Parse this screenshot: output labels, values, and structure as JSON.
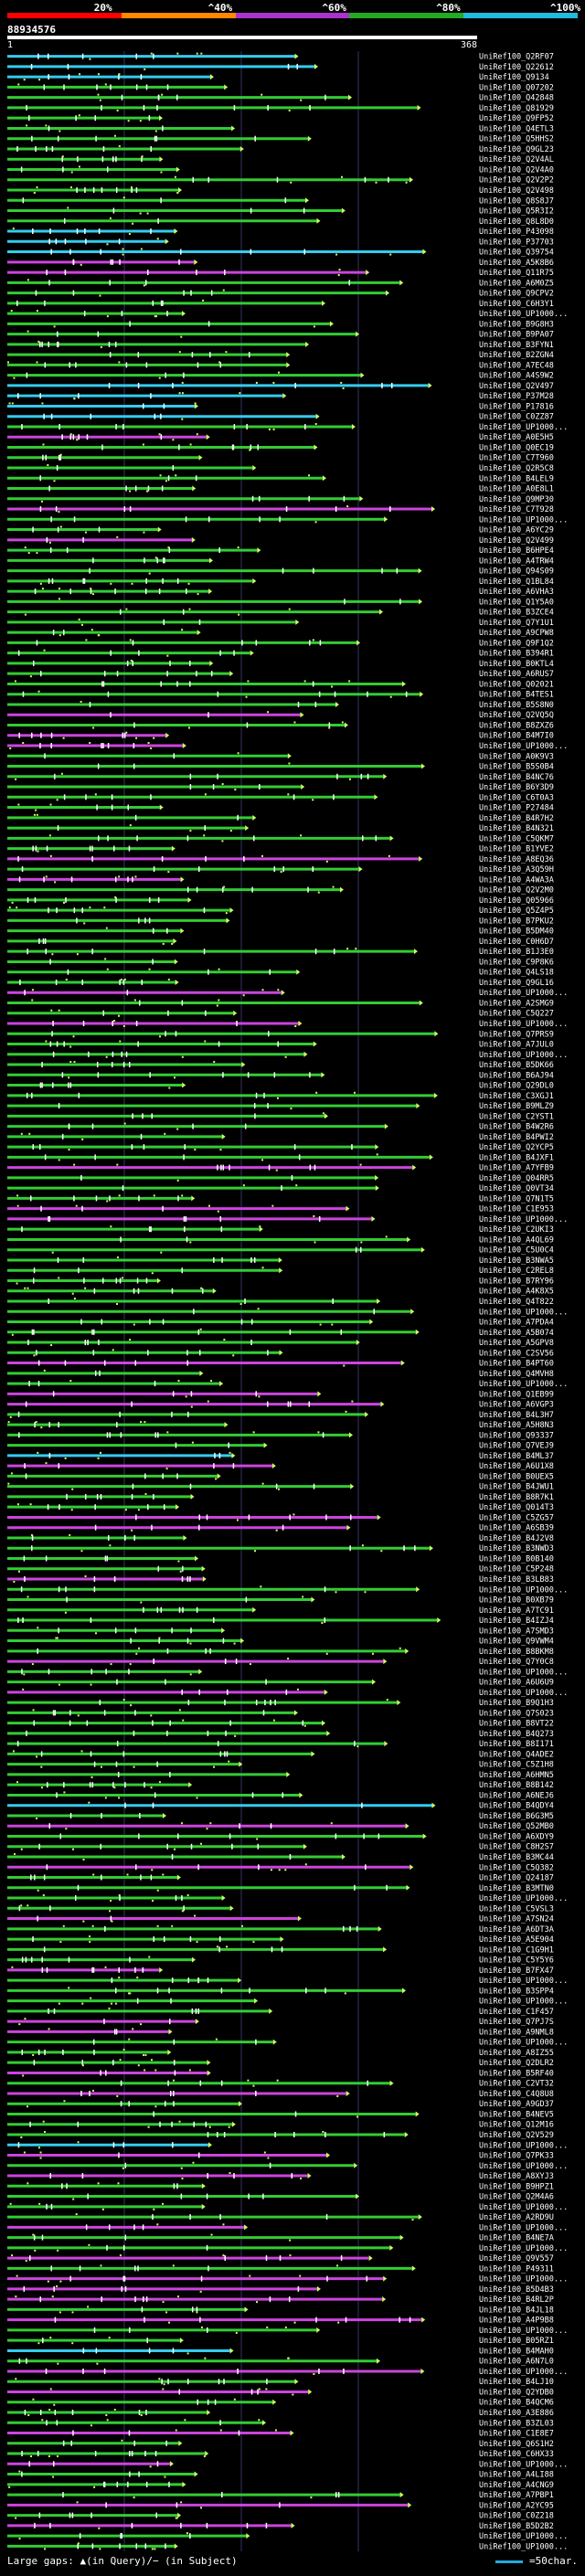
{
  "legend": {
    "segments": [
      {
        "label": "20%",
        "color": "#ff0000"
      },
      {
        "label": "^40%",
        "color": "#ff8800"
      },
      {
        "label": "^60%",
        "color": "#aa33cc"
      },
      {
        "label": "^80%",
        "color": "#22aa22"
      },
      {
        "label": "^100%",
        "color": "#22bbdd"
      }
    ]
  },
  "query_id": "88934576",
  "scale": {
    "start": "1",
    "end": "368"
  },
  "colors": {
    "gap": "#ffffff",
    "dots": "#ccff66",
    "grid": "#333366"
  },
  "chart_data": {
    "type": "alignment-overview",
    "x": {
      "range": [
        1,
        368
      ],
      "unit": "query position"
    },
    "hits": [
      {
        "name": "UniRef100_Q2RF07",
        "color": "cyan"
      },
      {
        "name": "UniRef100_Q22612",
        "color": "cyan"
      },
      {
        "name": "UniRef100_Q9134",
        "color": "cyan"
      },
      {
        "name": "UniRef100_Q07202",
        "color": "green"
      },
      {
        "name": "UniRef100_Q42848",
        "color": "green"
      },
      {
        "name": "UniRef100_Q81929",
        "color": "green"
      },
      {
        "name": "UniRef100_Q9FP52",
        "color": "green"
      },
      {
        "name": "UniRef100_Q4ETL3",
        "color": "green"
      },
      {
        "name": "UniRef100_Q5HHS2",
        "color": "green"
      },
      {
        "name": "UniRef100_Q9GL23",
        "color": "green"
      },
      {
        "name": "UniRef100_Q2V4AL",
        "color": "green"
      },
      {
        "name": "UniRef100_Q2V4A0",
        "color": "green"
      },
      {
        "name": "UniRef100_Q2V2P2",
        "color": "green"
      },
      {
        "name": "UniRef100_Q2V498",
        "color": "green"
      },
      {
        "name": "UniRef100_Q8S8J7",
        "color": "green"
      },
      {
        "name": "UniRef100_Q5R3I2",
        "color": "green"
      },
      {
        "name": "UniRef100_Q8L8D0",
        "color": "green"
      },
      {
        "name": "UniRef100_P43098",
        "color": "cyan"
      },
      {
        "name": "UniRef100_P37703",
        "color": "cyan"
      },
      {
        "name": "UniRef100_Q39754",
        "color": "cyan"
      },
      {
        "name": "UniRef100_A5K8B6",
        "color": "purple"
      },
      {
        "name": "UniRef100_Q11R75",
        "color": "purple"
      },
      {
        "name": "UniRef100_A6M0Z5",
        "color": "green"
      },
      {
        "name": "UniRef100_Q9CPV2",
        "color": "green"
      },
      {
        "name": "UniRef100_C6H3Y1",
        "color": "green"
      },
      {
        "name": "UniRef100_UP1000...",
        "color": "green"
      },
      {
        "name": "UniRef100_B9G8H3",
        "color": "green"
      },
      {
        "name": "UniRef100_B9PA07",
        "color": "green"
      },
      {
        "name": "UniRef100_B3FYN1",
        "color": "green"
      },
      {
        "name": "UniRef100_B2ZGN4",
        "color": "green"
      },
      {
        "name": "UniRef100_A7EC48",
        "color": "green"
      },
      {
        "name": "UniRef100_A4S9W2",
        "color": "green"
      },
      {
        "name": "UniRef100_Q2V497",
        "color": "cyan"
      },
      {
        "name": "UniRef100_P37M28",
        "color": "cyan"
      },
      {
        "name": "UniRef100_P17816",
        "color": "cyan"
      },
      {
        "name": "UniRef100_C0ZZ87",
        "color": "cyan"
      },
      {
        "name": "UniRef100_UP1000...",
        "color": "green"
      },
      {
        "name": "UniRef100_A0E5H5",
        "color": "purple"
      },
      {
        "name": "UniRef100_Q0EC19",
        "color": "green"
      },
      {
        "name": "UniRef100_C7T960",
        "color": "green"
      },
      {
        "name": "UniRef100_Q2R5C8",
        "color": "green"
      },
      {
        "name": "UniRef100_B4LEL9",
        "color": "green"
      },
      {
        "name": "UniRef100_A0E8L1",
        "color": "green"
      },
      {
        "name": "UniRef100_Q9MP30",
        "color": "green"
      },
      {
        "name": "UniRef100_C7T928",
        "color": "purple"
      },
      {
        "name": "UniRef100_UP1000...",
        "color": "green"
      },
      {
        "name": "UniRef100_A6YC29",
        "color": "green"
      },
      {
        "name": "UniRef100_Q2V499",
        "color": "purple"
      },
      {
        "name": "UniRef100_B6HPE4",
        "color": "green"
      },
      {
        "name": "UniRef100_A4TRW4",
        "color": "green"
      },
      {
        "name": "UniRef100_Q94S09",
        "color": "green"
      },
      {
        "name": "UniRef100_Q1BL84",
        "color": "green"
      },
      {
        "name": "UniRef100_A6VHA3",
        "color": "green"
      },
      {
        "name": "UniRef100_Q1Y5A0",
        "color": "green"
      },
      {
        "name": "UniRef100_B3ZCE4",
        "color": "green"
      },
      {
        "name": "UniRef100_Q7Y1U1",
        "color": "green"
      },
      {
        "name": "UniRef100_A9CPW8",
        "color": "green"
      },
      {
        "name": "UniRef100_Q9F1Q2",
        "color": "green"
      },
      {
        "name": "UniRef100_B394R1",
        "color": "green"
      },
      {
        "name": "UniRef100_B0KTL4",
        "color": "green"
      },
      {
        "name": "UniRef100_A6RUS7",
        "color": "green"
      },
      {
        "name": "UniRef100_Q02021",
        "color": "green"
      },
      {
        "name": "UniRef100_B4TES1",
        "color": "green"
      },
      {
        "name": "UniRef100_B5S8N0",
        "color": "green"
      },
      {
        "name": "UniRef100_Q2VQ5Q",
        "color": "purple"
      },
      {
        "name": "UniRef100_B8ZXZ6",
        "color": "green"
      },
      {
        "name": "UniRef100_B4M7I0",
        "color": "purple"
      },
      {
        "name": "UniRef100_UP1000...",
        "color": "purple"
      },
      {
        "name": "UniRef100_A0K9V3",
        "color": "green"
      },
      {
        "name": "UniRef100_B5S0B4",
        "color": "green"
      },
      {
        "name": "UniRef100_B4NC76",
        "color": "green"
      },
      {
        "name": "UniRef100_B6Y3D9",
        "color": "green"
      },
      {
        "name": "UniRef100_C6T0A3",
        "color": "green"
      },
      {
        "name": "UniRef100_P27484",
        "color": "green"
      },
      {
        "name": "UniRef100_B4R7H2",
        "color": "green"
      },
      {
        "name": "UniRef100_B4N321",
        "color": "green"
      },
      {
        "name": "UniRef100_C5QKM7",
        "color": "green"
      },
      {
        "name": "UniRef100_B1YVE2",
        "color": "green"
      },
      {
        "name": "UniRef100_A8EQ36",
        "color": "purple"
      },
      {
        "name": "UniRef100_A3Q59H",
        "color": "green"
      },
      {
        "name": "UniRef100_A4WA3A",
        "color": "purple"
      },
      {
        "name": "UniRef100_Q2V2M0",
        "color": "green"
      },
      {
        "name": "UniRef100_Q05966",
        "color": "green"
      },
      {
        "name": "UniRef100_Q5Z4P5",
        "color": "green"
      },
      {
        "name": "UniRef100_B7PKU2",
        "color": "green"
      },
      {
        "name": "UniRef100_B5DM40",
        "color": "green"
      },
      {
        "name": "UniRef100_C0H6D7",
        "color": "green"
      },
      {
        "name": "UniRef100_B1J3E0",
        "color": "green"
      },
      {
        "name": "UniRef100_C9P8K6",
        "color": "green"
      },
      {
        "name": "UniRef100_Q4LS18",
        "color": "green"
      },
      {
        "name": "UniRef100_Q9GL16",
        "color": "green"
      },
      {
        "name": "UniRef100_UP1000...",
        "color": "purple"
      },
      {
        "name": "UniRef100_A2SMG9",
        "color": "green"
      },
      {
        "name": "UniRef100_C5Q227",
        "color": "green"
      },
      {
        "name": "UniRef100_UP1000...",
        "color": "purple"
      },
      {
        "name": "UniRef100_Q7PRS9",
        "color": "green"
      },
      {
        "name": "UniRef100_A7JUL0",
        "color": "green"
      },
      {
        "name": "UniRef100_UP1000...",
        "color": "green"
      },
      {
        "name": "UniRef100_B5DK66",
        "color": "green"
      },
      {
        "name": "UniRef100_B6AJ94",
        "color": "green"
      },
      {
        "name": "UniRef100_Q29DL0",
        "color": "green"
      },
      {
        "name": "UniRef100_C3XGJ1",
        "color": "green"
      },
      {
        "name": "UniRef100_B9MLZ9",
        "color": "green"
      },
      {
        "name": "UniRef100_C2YST1",
        "color": "green"
      },
      {
        "name": "UniRef100_B4W2R6",
        "color": "green"
      },
      {
        "name": "UniRef100_B4PWI2",
        "color": "green"
      },
      {
        "name": "UniRef100_Q2YCP5",
        "color": "green"
      },
      {
        "name": "UniRef100_B4JXF1",
        "color": "green"
      },
      {
        "name": "UniRef100_A7YFB9",
        "color": "purple"
      },
      {
        "name": "UniRef100_Q04RR5",
        "color": "green"
      },
      {
        "name": "UniRef100_Q0VT34",
        "color": "green"
      },
      {
        "name": "UniRef100_Q7N1T5",
        "color": "green"
      },
      {
        "name": "UniRef100_C1E953",
        "color": "purple"
      },
      {
        "name": "UniRef100_UP1000...",
        "color": "purple"
      },
      {
        "name": "UniRef100_C2UKI3",
        "color": "green"
      },
      {
        "name": "UniRef100_A4QL69",
        "color": "green"
      },
      {
        "name": "UniRef100_C5U0C4",
        "color": "green"
      },
      {
        "name": "UniRef100_B3NWA5",
        "color": "green"
      },
      {
        "name": "UniRef100_C2REL8",
        "color": "green"
      },
      {
        "name": "UniRef100_B7RY96",
        "color": "green"
      },
      {
        "name": "UniRef100_A4K8X5",
        "color": "green"
      },
      {
        "name": "UniRef100_Q4T822",
        "color": "green"
      },
      {
        "name": "UniRef100_UP1000...",
        "color": "green"
      },
      {
        "name": "UniRef100_A7PDA4",
        "color": "green"
      },
      {
        "name": "UniRef100_A5B074",
        "color": "green"
      },
      {
        "name": "UniRef100_A5GPV8",
        "color": "green"
      },
      {
        "name": "UniRef100_C2SV56",
        "color": "green"
      },
      {
        "name": "UniRef100_B4PT60",
        "color": "purple"
      },
      {
        "name": "UniRef100_Q4MVH8",
        "color": "green"
      },
      {
        "name": "UniRef100_UP1000...",
        "color": "green"
      },
      {
        "name": "UniRef100_Q1EB99",
        "color": "purple"
      },
      {
        "name": "UniRef100_A6VGP3",
        "color": "purple"
      },
      {
        "name": "UniRef100_B4L3H7",
        "color": "green"
      },
      {
        "name": "UniRef100_A5H8N3",
        "color": "green"
      },
      {
        "name": "UniRef100_Q93337",
        "color": "green"
      },
      {
        "name": "UniRef100_Q7VEJ9",
        "color": "green"
      },
      {
        "name": "UniRef100_B4ML37",
        "color": "cyan"
      },
      {
        "name": "UniRef100_A6U1X8",
        "color": "purple"
      },
      {
        "name": "UniRef100_B0UEX5",
        "color": "green"
      },
      {
        "name": "UniRef100_B4JWU1",
        "color": "green"
      },
      {
        "name": "UniRef100_B8R7K1",
        "color": "green"
      },
      {
        "name": "UniRef100_Q014T3",
        "color": "green"
      },
      {
        "name": "UniRef100_C5ZG57",
        "color": "purple"
      },
      {
        "name": "UniRef100_A6SB39",
        "color": "purple"
      },
      {
        "name": "UniRef100_B4J2V8",
        "color": "green"
      },
      {
        "name": "UniRef100_B3NWD3",
        "color": "green"
      },
      {
        "name": "UniRef100_B0B140",
        "color": "green"
      },
      {
        "name": "UniRef100_C5P248",
        "color": "green"
      },
      {
        "name": "UniRef100_B3LB83",
        "color": "purple"
      },
      {
        "name": "UniRef100_UP1000...",
        "color": "green"
      },
      {
        "name": "UniRef100_B0XB79",
        "color": "green"
      },
      {
        "name": "UniRef100_A7TC91",
        "color": "green"
      },
      {
        "name": "UniRef100_B4IZJ4",
        "color": "green"
      },
      {
        "name": "UniRef100_A7SMD3",
        "color": "green"
      },
      {
        "name": "UniRef100_Q9VWM4",
        "color": "green"
      },
      {
        "name": "UniRef100_B8BKM8",
        "color": "green"
      },
      {
        "name": "UniRef100_Q7Y0C8",
        "color": "purple"
      },
      {
        "name": "UniRef100_UP1000...",
        "color": "green"
      },
      {
        "name": "UniRef100_A6U6U9",
        "color": "green"
      },
      {
        "name": "UniRef100_UP1000...",
        "color": "purple"
      },
      {
        "name": "UniRef100_B9Q1H3",
        "color": "green"
      },
      {
        "name": "UniRef100_Q7S023",
        "color": "green"
      },
      {
        "name": "UniRef100_B8VT22",
        "color": "green"
      },
      {
        "name": "UniRef100_B4Q273",
        "color": "green"
      },
      {
        "name": "UniRef100_B8I171",
        "color": "green"
      },
      {
        "name": "UniRef100_Q4ADE2",
        "color": "green"
      },
      {
        "name": "UniRef100_C5Z1H8",
        "color": "green"
      },
      {
        "name": "UniRef100_A6HMN5",
        "color": "green"
      },
      {
        "name": "UniRef100_B8B142",
        "color": "green"
      },
      {
        "name": "UniRef100_A6NEJ6",
        "color": "green"
      },
      {
        "name": "UniRef100_B4QDY4",
        "color": "cyan"
      },
      {
        "name": "UniRef100_B6G3M5",
        "color": "green"
      },
      {
        "name": "UniRef100_Q52MB0",
        "color": "purple"
      },
      {
        "name": "UniRef100_A6XDY9",
        "color": "green"
      },
      {
        "name": "UniRef100_C8H2S7",
        "color": "green"
      },
      {
        "name": "UniRef100_B3MC44",
        "color": "green"
      },
      {
        "name": "UniRef100_C5Q382",
        "color": "purple"
      },
      {
        "name": "UniRef100_Q24187",
        "color": "green"
      },
      {
        "name": "UniRef100_B3MTN0",
        "color": "green"
      },
      {
        "name": "UniRef100_UP1000...",
        "color": "green"
      },
      {
        "name": "UniRef100_C5VSL3",
        "color": "green"
      },
      {
        "name": "UniRef100_A7SN24",
        "color": "purple"
      },
      {
        "name": "UniRef100_A6DT3A",
        "color": "green"
      },
      {
        "name": "UniRef100_A5E904",
        "color": "green"
      },
      {
        "name": "UniRef100_C1G9H1",
        "color": "green"
      },
      {
        "name": "UniRef100_C5Y5Y6",
        "color": "green"
      },
      {
        "name": "UniRef100_B7FX47",
        "color": "purple"
      },
      {
        "name": "UniRef100_UP1000...",
        "color": "green"
      },
      {
        "name": "UniRef100_B3SPP4",
        "color": "green"
      },
      {
        "name": "UniRef100_UP1000...",
        "color": "green"
      },
      {
        "name": "UniRef100_C1F457",
        "color": "green"
      },
      {
        "name": "UniRef100_Q7PJ7S",
        "color": "purple"
      },
      {
        "name": "UniRef100_A9NML8",
        "color": "purple"
      },
      {
        "name": "UniRef100_UP1000...",
        "color": "green"
      },
      {
        "name": "UniRef100_A8IZ55",
        "color": "green"
      },
      {
        "name": "UniRef100_Q2DLR2",
        "color": "green"
      },
      {
        "name": "UniRef100_B5RF40",
        "color": "purple"
      },
      {
        "name": "UniRef100_C2VT32",
        "color": "green"
      },
      {
        "name": "UniRef100_C4Q8U8",
        "color": "purple"
      },
      {
        "name": "UniRef100_A9GD37",
        "color": "green"
      },
      {
        "name": "UniRef100_B4NEV5",
        "color": "green"
      },
      {
        "name": "UniRef100_Q12M16",
        "color": "green"
      },
      {
        "name": "UniRef100_Q2V529",
        "color": "green"
      },
      {
        "name": "UniRef100_UP1000...",
        "color": "cyan"
      },
      {
        "name": "UniRef100_Q7PK33",
        "color": "purple"
      },
      {
        "name": "UniRef100_UP1000...",
        "color": "green"
      },
      {
        "name": "UniRef100_A8XYJ3",
        "color": "purple"
      },
      {
        "name": "UniRef100_B9HPZ1",
        "color": "green"
      },
      {
        "name": "UniRef100_Q2M4A6",
        "color": "green"
      },
      {
        "name": "UniRef100_UP1000...",
        "color": "green"
      },
      {
        "name": "UniRef100_A2RD9U",
        "color": "green"
      },
      {
        "name": "UniRef100_UP1000...",
        "color": "purple"
      },
      {
        "name": "UniRef100_B4NE7A",
        "color": "green"
      },
      {
        "name": "UniRef100_UP1000...",
        "color": "green"
      },
      {
        "name": "UniRef100_Q9V557",
        "color": "purple"
      },
      {
        "name": "UniRef100_P49311",
        "color": "green"
      },
      {
        "name": "UniRef100_UP1000...",
        "color": "purple"
      },
      {
        "name": "UniRef100_B5D4B3",
        "color": "purple"
      },
      {
        "name": "UniRef100_B4RL2P",
        "color": "purple"
      },
      {
        "name": "UniRef100_B4JL18",
        "color": "green"
      },
      {
        "name": "UniRef100_A4P9B8",
        "color": "purple"
      },
      {
        "name": "UniRef100_UP1000...",
        "color": "green"
      },
      {
        "name": "UniRef100_B05RZ1",
        "color": "green"
      },
      {
        "name": "UniRef100_B4MAH0",
        "color": "cyan"
      },
      {
        "name": "UniRef100_A6N7L0",
        "color": "green"
      },
      {
        "name": "UniRef100_UP1000...",
        "color": "purple"
      },
      {
        "name": "UniRef100_B4LJ10",
        "color": "green"
      },
      {
        "name": "UniRef100_Q2YDB0",
        "color": "purple"
      },
      {
        "name": "UniRef100_B4QCM6",
        "color": "green"
      },
      {
        "name": "UniRef100_A3E886",
        "color": "green"
      },
      {
        "name": "UniRef100_B3ZL03",
        "color": "green"
      },
      {
        "name": "UniRef100_C1E8E7",
        "color": "purple"
      },
      {
        "name": "UniRef100_Q6S1H2",
        "color": "green"
      },
      {
        "name": "UniRef100_C6HX33",
        "color": "green"
      },
      {
        "name": "UniRef100_UP1000...",
        "color": "purple"
      },
      {
        "name": "UniRef100_A4LI88",
        "color": "green"
      },
      {
        "name": "UniRef100_A4CNG9",
        "color": "green"
      },
      {
        "name": "UniRef100_A7PBP1",
        "color": "green"
      },
      {
        "name": "UniRef100_A2YC95",
        "color": "purple"
      },
      {
        "name": "UniRef100_C0Z218",
        "color": "green"
      },
      {
        "name": "UniRef100_B5D2B2",
        "color": "purple"
      },
      {
        "name": "UniRef100_UP1000...",
        "color": "green"
      },
      {
        "name": "UniRef100_UP1000...",
        "color": "green"
      }
    ]
  },
  "footer": {
    "left": "Large gaps: ▲(in Query)/− (in Subject)",
    "right": "=50char."
  }
}
